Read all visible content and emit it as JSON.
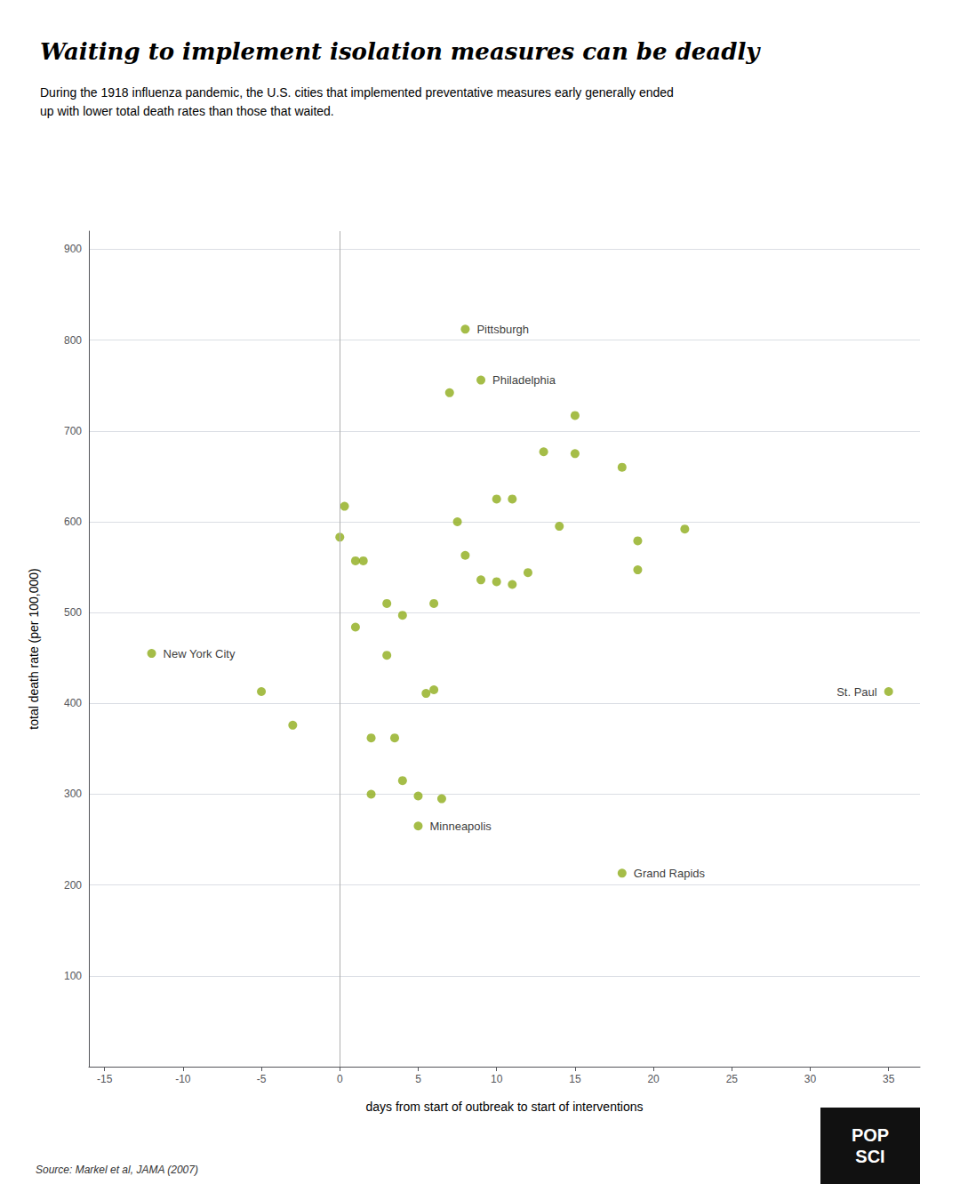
{
  "chart_data": {
    "type": "scatter",
    "title": "Waiting to implement isolation measures can be deadly",
    "subtitle": "During the 1918 influenza pandemic, the U.S. cities that implemented preventative measures early generally ended\nup with lower total death rates than those that waited.",
    "xlabel": "days from start of outbreak to start of interventions",
    "ylabel": "total death rate (per 100,000)",
    "source": "Source: Markel et al, JAMA (2007)",
    "logo": "POP\nSCI",
    "color": "#8fad1a",
    "reference_line": {
      "x": 0,
      "color": "#b0b0b0"
    },
    "grid": true,
    "xlim": [
      -16,
      37
    ],
    "ylim": [
      0,
      920
    ],
    "xticks": [
      -15,
      -10,
      -5,
      0,
      5,
      10,
      15,
      20,
      25,
      30,
      35
    ],
    "yticks": [
      100,
      200,
      300,
      400,
      500,
      600,
      700,
      800,
      900
    ],
    "x": [
      -12,
      -5,
      -3,
      0,
      0.3,
      1,
      1.5,
      1,
      2,
      2,
      3,
      3.5,
      3,
      4,
      4,
      5,
      5,
      5.5,
      6,
      6,
      6.5,
      7,
      7.5,
      8,
      8,
      9,
      9,
      10,
      10,
      11,
      11,
      12,
      13,
      14,
      15,
      15,
      18,
      18,
      19,
      19,
      22,
      35
    ],
    "values": [
      455,
      413,
      376,
      583,
      617,
      557,
      557,
      484,
      362,
      300,
      453,
      362,
      510,
      315,
      497,
      298,
      265,
      411,
      415,
      510,
      295,
      742,
      600,
      812,
      563,
      756,
      536,
      534,
      625,
      531,
      625,
      544,
      677,
      595,
      717,
      675,
      660,
      213,
      579,
      547,
      592,
      413
    ],
    "point_labels": [
      "New York City",
      null,
      null,
      null,
      null,
      null,
      null,
      null,
      null,
      null,
      null,
      null,
      null,
      null,
      null,
      null,
      "Minneapolis",
      null,
      null,
      null,
      null,
      null,
      null,
      "Pittsburgh",
      null,
      "Philadelphia",
      null,
      null,
      null,
      null,
      null,
      null,
      null,
      null,
      null,
      null,
      null,
      "Grand Rapids",
      null,
      null,
      null,
      "St. Paul"
    ]
  }
}
